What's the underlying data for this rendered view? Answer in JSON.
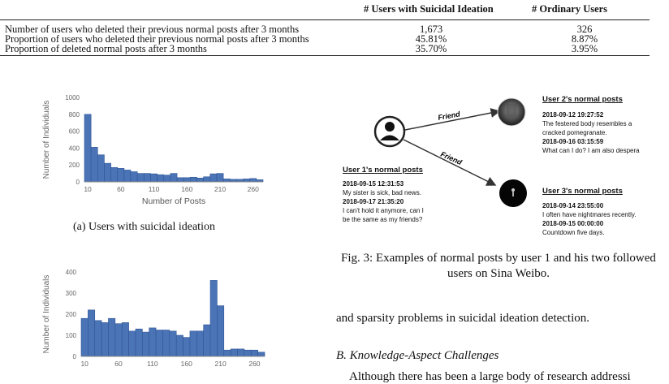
{
  "table": {
    "headers": [
      "# Users with Suicidal Ideation",
      "# Ordinary Users"
    ],
    "rows": [
      {
        "label": "Number of users who deleted their previous normal posts after 3 months",
        "suicidal": "1,673",
        "ordinary": "326"
      },
      {
        "label": "Proportion of users who deleted their previous normal posts after 3 months",
        "suicidal": "45.81%",
        "ordinary": "8.87%"
      },
      {
        "label": "Proportion of deleted normal posts after 3 months",
        "suicidal": "35.70%",
        "ordinary": "3.95%"
      }
    ]
  },
  "chart_data": [
    {
      "type": "bar",
      "xlabel": "Number of Posts",
      "ylabel": "Number of Individuals",
      "ylim": [
        0,
        1000
      ],
      "yticks": [
        "0",
        "200",
        "400",
        "600",
        "800",
        "1000"
      ],
      "xticks": [
        "10",
        "60",
        "110",
        "160",
        "210",
        "260"
      ],
      "values": [
        800,
        410,
        320,
        220,
        170,
        160,
        140,
        120,
        100,
        100,
        95,
        85,
        80,
        100,
        50,
        50,
        55,
        45,
        60,
        95,
        100,
        35,
        30,
        30,
        35,
        40,
        25
      ]
    },
    {
      "type": "bar",
      "xlabel": "",
      "ylabel": "Number of Individuals",
      "ylim": [
        0,
        400
      ],
      "yticks": [
        "0",
        "100",
        "200",
        "300",
        "400"
      ],
      "xticks": [
        "10",
        "60",
        "110",
        "160",
        "210",
        "260"
      ],
      "values": [
        180,
        220,
        170,
        160,
        180,
        155,
        160,
        120,
        130,
        115,
        135,
        125,
        125,
        120,
        100,
        90,
        120,
        120,
        150,
        360,
        240,
        30,
        35,
        35,
        30,
        30,
        20
      ]
    }
  ],
  "captions": {
    "fig_a": "(a) Users with suicidal ideation",
    "fig3": "Fig. 3: Examples of normal posts by user 1 and his two followed users on Sina Weibo."
  },
  "fig3": {
    "friend_label": "Friend",
    "user1": {
      "title": "User 1's normal posts",
      "lines": [
        {
          "text": "2018-09-15 12:31:53",
          "bold": true
        },
        {
          "text": "My sister is sick, bad news.",
          "bold": false
        },
        {
          "text": "2018-09-17 21:35:20",
          "bold": true
        },
        {
          "text": "I can't hold it anymore, can I",
          "bold": false
        },
        {
          "text": "be the same as my friends?",
          "bold": false
        }
      ]
    },
    "user2": {
      "title": "User 2's normal posts",
      "lines": [
        {
          "text": "2018-09-12 19:27:52",
          "bold": true
        },
        {
          "text": "The festered body resembles a",
          "bold": false
        },
        {
          "text": "cracked pomegranate.",
          "bold": false
        },
        {
          "text": "2018-09-16 03:15:59",
          "bold": true
        },
        {
          "text": "What can I do? I am also despera",
          "bold": false
        }
      ]
    },
    "user3": {
      "title": "User 3's normal posts",
      "lines": [
        {
          "text": "2018-09-14 23:55:00",
          "bold": true
        },
        {
          "text": "I often have nightmares recently.",
          "bold": false
        },
        {
          "text": "2018-09-15 00:00:00",
          "bold": true
        },
        {
          "text": "Countdown five days.",
          "bold": false
        }
      ]
    }
  },
  "body": {
    "text1": "and sparsity problems in suicidal ideation detection.",
    "section": "B.  Knowledge-Aspect Challenges",
    "text2": "Although there has been a large body of research addressi"
  },
  "colors": {
    "bar": "#4a74b5",
    "bar_edge": "#2f5597",
    "axis": "#888888"
  }
}
